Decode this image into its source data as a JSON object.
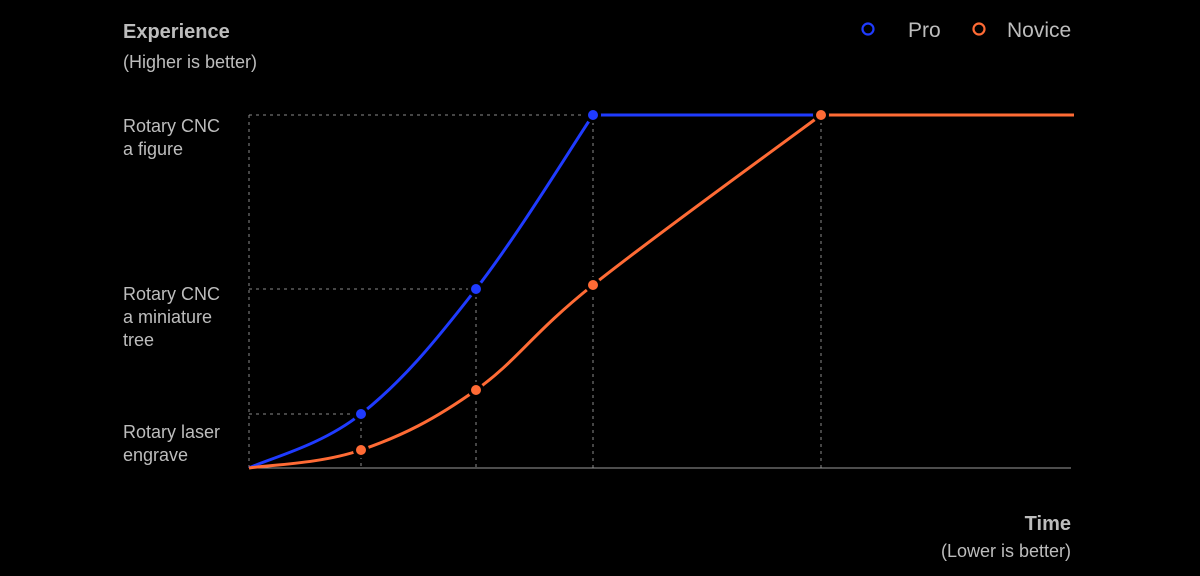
{
  "chart_data": {
    "type": "line",
    "ylabel": "Experience",
    "ylabel_note": "(Higher is better)",
    "xlabel": "Time",
    "xlabel_note": "(Lower is better)",
    "y_tick_labels": [
      {
        "lines": [
          "Rotary laser",
          "engrave"
        ],
        "value": 1
      },
      {
        "lines": [
          "Rotary CNC",
          "a miniature",
          "tree"
        ],
        "value": 2
      },
      {
        "lines": [
          "Rotary CNC",
          "a figure"
        ],
        "value": 3
      }
    ],
    "legend_position": "top-right",
    "grid": false,
    "series": [
      {
        "name": "Pro",
        "color": "#1f3bff",
        "points": [
          {
            "x": 0,
            "y": 0
          },
          {
            "x": 1,
            "y": 1
          },
          {
            "x": 2,
            "y": 2
          },
          {
            "x": 3,
            "y": 3
          },
          {
            "x": 5,
            "y": 3
          }
        ],
        "markers": [
          1,
          2,
          3
        ]
      },
      {
        "name": "Novice",
        "color": "#ff6b35",
        "points": [
          {
            "x": 0,
            "y": 0
          },
          {
            "x": 1,
            "y": 0.5
          },
          {
            "x": 2,
            "y": 1.5
          },
          {
            "x": 3,
            "y": 2.5
          },
          {
            "x": 5,
            "y": 3
          },
          {
            "x": 7.2,
            "y": 3
          }
        ],
        "markers": [
          1,
          2,
          3,
          4
        ]
      }
    ],
    "xlim": [
      0,
      7.2
    ],
    "ylim": [
      0,
      3
    ]
  }
}
